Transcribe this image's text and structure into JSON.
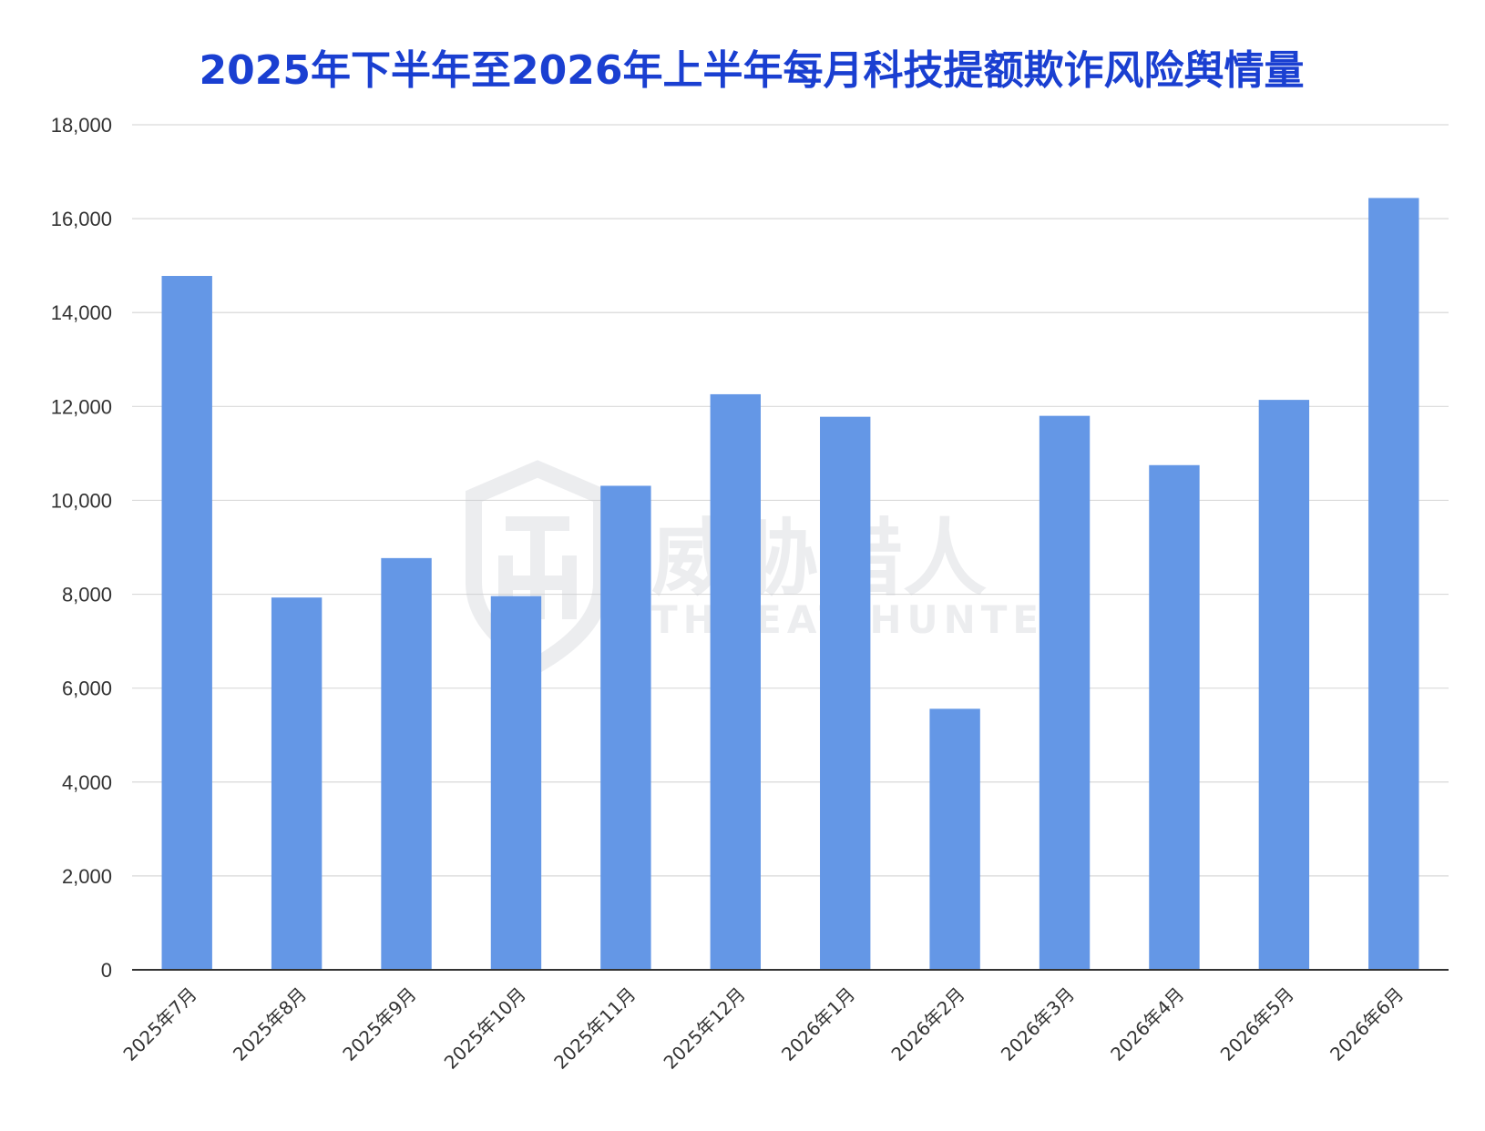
{
  "chart_data": {
    "type": "bar",
    "title": "2025年下半年至2026年上半年每月科技提额欺诈风险舆情量",
    "xlabel": "",
    "ylabel": "",
    "ylim": [
      0,
      18000
    ],
    "yticks": [
      0,
      2000,
      4000,
      6000,
      8000,
      10000,
      12000,
      14000,
      16000,
      18000
    ],
    "ytick_labels": [
      "0",
      "2,000",
      "4,000",
      "6,000",
      "8,000",
      "10,000",
      "12,000",
      "14,000",
      "16,000",
      "18,000"
    ],
    "grid": true,
    "legend": "none",
    "bar_color": "#6497e6",
    "categories": [
      "2025年7月",
      "2025年8月",
      "2025年9月",
      "2025年10月",
      "2025年11月",
      "2025年12月",
      "2026年1月",
      "2026年2月",
      "2026年3月",
      "2026年4月",
      "2026年5月",
      "2026年6月"
    ],
    "values": [
      14780,
      7930,
      8770,
      7960,
      10310,
      12260,
      11780,
      5560,
      11800,
      10750,
      12140,
      16440
    ]
  },
  "watermark": {
    "name_cn": "威胁猎人",
    "name_en": "THREAT HUNTER",
    "icon": "shield-th-logo",
    "color": "#c9ccd3"
  },
  "colors": {
    "title": "#1a3fd1",
    "grid": "#d9d9d9",
    "axis": "#333333"
  }
}
